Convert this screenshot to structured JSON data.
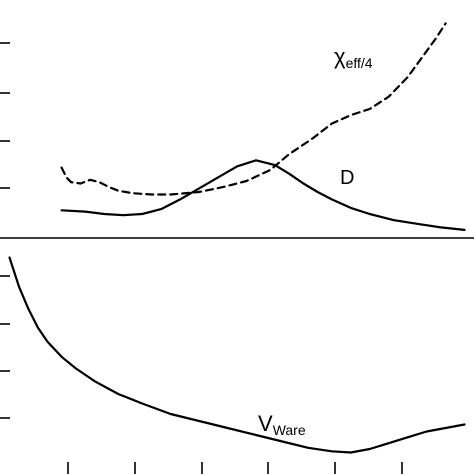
{
  "chart_data": [
    {
      "type": "line",
      "panel": "top",
      "title": "",
      "xlabel": "",
      "ylabel": "",
      "tick_labels_visible": false,
      "grid": false,
      "legend": "none",
      "series": [
        {
          "name": "χ",
          "name_subscript": "eff/4",
          "style": "dashed",
          "x": [
            0.13,
            0.14,
            0.15,
            0.17,
            0.19,
            0.21,
            0.23,
            0.25,
            0.28,
            0.32,
            0.36,
            0.42,
            0.47,
            0.52,
            0.57,
            0.61,
            0.66,
            0.7,
            0.74,
            0.78,
            0.82,
            0.86,
            0.89,
            0.92,
            0.94
          ],
          "y": [
            0.56,
            0.48,
            0.44,
            0.43,
            0.46,
            0.44,
            0.4,
            0.37,
            0.35,
            0.34,
            0.34,
            0.36,
            0.4,
            0.45,
            0.54,
            0.67,
            0.8,
            0.92,
            0.99,
            1.04,
            1.14,
            1.3,
            1.46,
            1.62,
            1.74
          ]
        },
        {
          "name": "D",
          "name_subscript": "",
          "style": "solid",
          "x": [
            0.13,
            0.18,
            0.22,
            0.26,
            0.3,
            0.34,
            0.38,
            0.42,
            0.46,
            0.5,
            0.54,
            0.58,
            0.61,
            0.64,
            0.67,
            0.7,
            0.74,
            0.78,
            0.83,
            0.88,
            0.93,
            0.98
          ],
          "y": [
            0.21,
            0.2,
            0.18,
            0.17,
            0.18,
            0.22,
            0.3,
            0.39,
            0.48,
            0.57,
            0.62,
            0.58,
            0.51,
            0.43,
            0.36,
            0.3,
            0.23,
            0.18,
            0.13,
            0.1,
            0.07,
            0.05
          ]
        }
      ],
      "xlim": [
        0,
        1
      ],
      "ylim": [
        0,
        1.85
      ]
    },
    {
      "type": "line",
      "panel": "bottom",
      "title": "",
      "xlabel": "",
      "ylabel": "",
      "tick_labels_visible": false,
      "grid": false,
      "legend": "none",
      "series": [
        {
          "name": "V",
          "name_subscript": "Ware",
          "style": "solid",
          "x": [
            0.02,
            0.04,
            0.06,
            0.08,
            0.1,
            0.13,
            0.16,
            0.2,
            0.25,
            0.3,
            0.36,
            0.42,
            0.48,
            0.54,
            0.6,
            0.65,
            0.7,
            0.74,
            0.78,
            0.82,
            0.86,
            0.9,
            0.94,
            0.98
          ],
          "y": [
            1.7,
            1.45,
            1.26,
            1.1,
            0.98,
            0.85,
            0.75,
            0.64,
            0.53,
            0.45,
            0.36,
            0.3,
            0.24,
            0.18,
            0.12,
            0.07,
            0.04,
            0.03,
            0.06,
            0.11,
            0.16,
            0.21,
            0.24,
            0.27
          ]
        }
      ],
      "xlim": [
        0,
        1
      ],
      "ylim": [
        0,
        1.85
      ]
    }
  ]
}
